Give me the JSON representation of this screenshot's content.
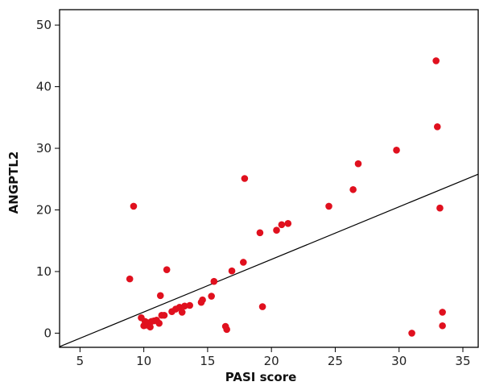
{
  "chart_data": {
    "type": "scatter",
    "title": "",
    "xlabel": "PASI score",
    "ylabel": "ANGPTL2",
    "xlim": [
      3.4,
      36.2
    ],
    "ylim": [
      -2.3,
      52.5
    ],
    "xticks": [
      5,
      10,
      15,
      20,
      25,
      30,
      35
    ],
    "yticks": [
      0,
      10,
      20,
      30,
      40,
      50
    ],
    "grid": false,
    "colors": {
      "points": "#e0101e",
      "trendline": "#000000",
      "axes": "#000000"
    },
    "trendline": {
      "x": [
        3.4,
        36.2
      ],
      "y": [
        -2.2,
        25.8
      ]
    },
    "points": {
      "x": [
        8.9,
        9.2,
        9.8,
        10.0,
        10.1,
        10.2,
        10.3,
        10.5,
        10.6,
        10.8,
        11.0,
        11.2,
        11.3,
        11.4,
        11.6,
        11.8,
        12.2,
        12.5,
        12.8,
        13.0,
        13.2,
        13.6,
        14.5,
        14.6,
        15.3,
        15.5,
        16.4,
        16.5,
        16.9,
        17.8,
        17.9,
        19.1,
        19.3,
        20.4,
        20.8,
        21.3,
        24.5,
        26.4,
        26.8,
        29.8,
        31.0,
        32.9,
        33.0,
        33.2,
        33.4,
        33.4
      ],
      "y": [
        8.8,
        20.6,
        2.5,
        1.2,
        1.9,
        1.3,
        1.7,
        1.0,
        1.9,
        2.0,
        2.1,
        1.6,
        6.1,
        2.9,
        2.9,
        10.3,
        3.5,
        3.9,
        4.2,
        3.4,
        4.4,
        4.5,
        5.0,
        5.4,
        6.0,
        8.4,
        1.1,
        0.6,
        10.1,
        11.5,
        25.1,
        16.3,
        4.3,
        16.7,
        17.6,
        17.8,
        20.6,
        23.3,
        27.5,
        29.7,
        0.0,
        44.2,
        33.5,
        20.3,
        3.4,
        1.2
      ]
    }
  }
}
